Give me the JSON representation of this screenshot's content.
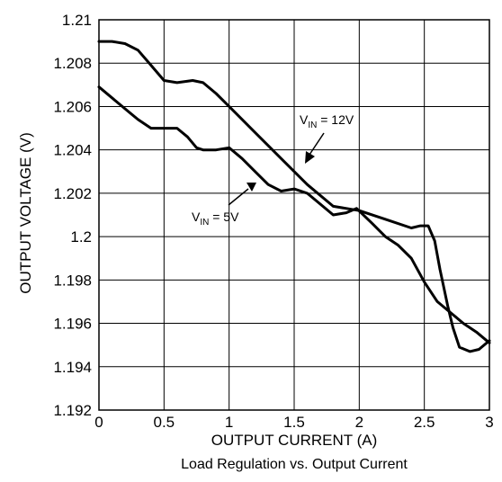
{
  "chart_data": {
    "type": "line",
    "xlabel": "OUTPUT CURRENT (A)",
    "ylabel": "OUTPUT VOLTAGE (V)",
    "caption": "Load Regulation vs. Output Current",
    "xlim": [
      0,
      3
    ],
    "ylim": [
      1.192,
      1.21
    ],
    "x_ticks": [
      "0",
      "0.5",
      "1",
      "1.5",
      "2",
      "2.5",
      "3"
    ],
    "y_ticks": [
      "1.192",
      "1.194",
      "1.196",
      "1.198",
      "1.2",
      "1.202",
      "1.204",
      "1.206",
      "1.208",
      "1.21"
    ],
    "grid": true,
    "series": [
      {
        "label_main": "V",
        "label_sub": "IN",
        "label_rest": " = 12V",
        "points": [
          [
            0.0,
            1.209
          ],
          [
            0.1,
            1.209
          ],
          [
            0.2,
            1.2089
          ],
          [
            0.3,
            1.2086
          ],
          [
            0.4,
            1.2079
          ],
          [
            0.5,
            1.2072
          ],
          [
            0.6,
            1.2071
          ],
          [
            0.72,
            1.2072
          ],
          [
            0.8,
            1.2071
          ],
          [
            0.9,
            1.2066
          ],
          [
            1.0,
            1.206
          ],
          [
            1.2,
            1.2048
          ],
          [
            1.4,
            1.2036
          ],
          [
            1.6,
            1.2024
          ],
          [
            1.8,
            1.2014
          ],
          [
            2.0,
            1.2012
          ],
          [
            2.2,
            1.2008
          ],
          [
            2.4,
            1.2004
          ],
          [
            2.47,
            1.2005
          ],
          [
            2.53,
            1.2005
          ],
          [
            2.58,
            1.1998
          ],
          [
            2.62,
            1.1985
          ],
          [
            2.68,
            1.1968
          ],
          [
            2.72,
            1.1958
          ],
          [
            2.77,
            1.1949
          ],
          [
            2.85,
            1.1947
          ],
          [
            2.92,
            1.1948
          ],
          [
            3.0,
            1.1952
          ]
        ]
      },
      {
        "label_main": "V",
        "label_sub": "IN",
        "label_rest": " = 5V",
        "points": [
          [
            0.0,
            1.2069
          ],
          [
            0.1,
            1.2064
          ],
          [
            0.2,
            1.2059
          ],
          [
            0.3,
            1.2054
          ],
          [
            0.4,
            1.205
          ],
          [
            0.5,
            1.205
          ],
          [
            0.6,
            1.205
          ],
          [
            0.68,
            1.2046
          ],
          [
            0.75,
            1.2041
          ],
          [
            0.8,
            1.204
          ],
          [
            0.9,
            1.204
          ],
          [
            1.0,
            1.2041
          ],
          [
            1.1,
            1.2036
          ],
          [
            1.2,
            1.203
          ],
          [
            1.3,
            1.2024
          ],
          [
            1.4,
            1.2021
          ],
          [
            1.5,
            1.2022
          ],
          [
            1.6,
            1.202
          ],
          [
            1.7,
            1.2015
          ],
          [
            1.8,
            1.201
          ],
          [
            1.9,
            1.2011
          ],
          [
            1.98,
            1.2013
          ],
          [
            2.1,
            1.2006
          ],
          [
            2.2,
            1.2
          ],
          [
            2.3,
            1.1996
          ],
          [
            2.4,
            1.199
          ],
          [
            2.5,
            1.1979
          ],
          [
            2.6,
            1.197
          ],
          [
            2.7,
            1.1965
          ],
          [
            2.8,
            1.196
          ],
          [
            2.9,
            1.1956
          ],
          [
            3.0,
            1.1951
          ]
        ]
      }
    ]
  }
}
